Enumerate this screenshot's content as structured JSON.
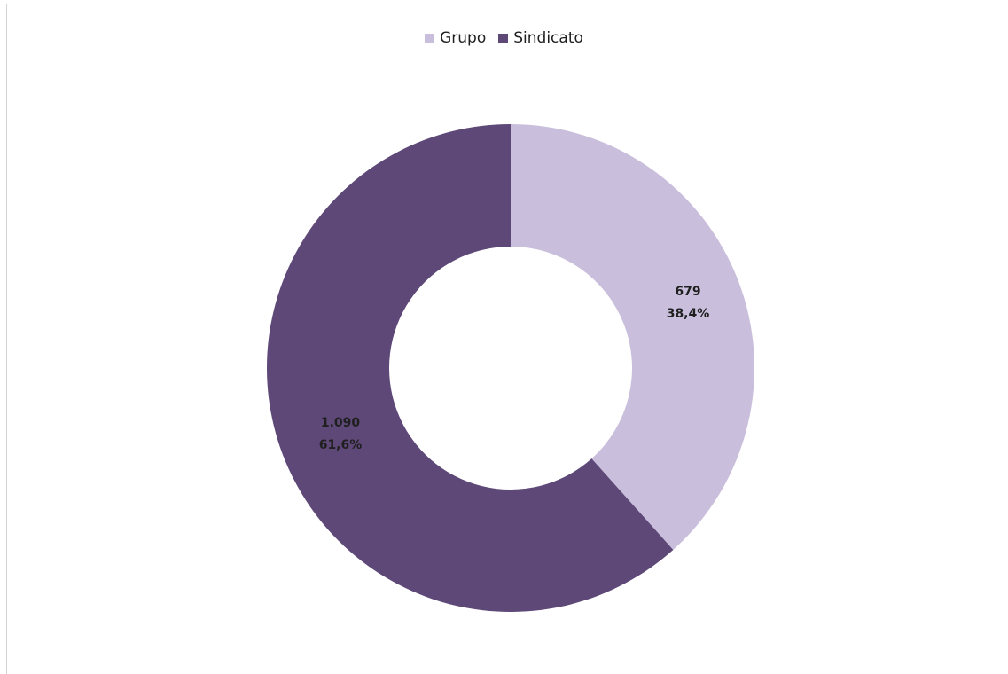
{
  "chart_data": {
    "type": "donut",
    "title": "",
    "legend_position": "top",
    "series": [
      {
        "name": "Grupo",
        "value": 679,
        "value_label": "679",
        "percent_label": "38,4%",
        "color": "#c9bfdc"
      },
      {
        "name": "Sindicato",
        "value": 1090,
        "value_label": "1.090",
        "percent_label": "61,6%",
        "color": "#5e4878"
      }
    ]
  }
}
